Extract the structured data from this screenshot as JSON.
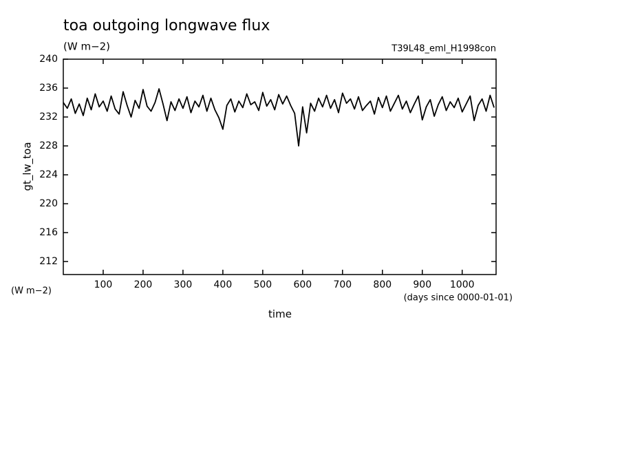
{
  "chart_data": {
    "type": "line",
    "title": "toa outgoing longwave flux",
    "subtitle": "(W m−2)",
    "run_label": "T39L48_eml_H1998con",
    "y_label": "gt_lw_toa",
    "y_unit": "(W m−2)",
    "x_label": "time",
    "x_unit": "(days since 0000-01-01)",
    "xlim": [
      0,
      1085
    ],
    "ylim": [
      210.2,
      240
    ],
    "xticks": [
      100,
      200,
      300,
      400,
      500,
      600,
      700,
      800,
      900,
      1000
    ],
    "yticks": [
      212,
      216,
      220,
      224,
      228,
      232,
      236,
      240
    ],
    "x": [
      0,
      10,
      20,
      30,
      40,
      50,
      60,
      70,
      80,
      90,
      100,
      110,
      120,
      130,
      140,
      150,
      160,
      170,
      180,
      190,
      200,
      210,
      220,
      230,
      240,
      250,
      260,
      270,
      280,
      290,
      300,
      310,
      320,
      330,
      340,
      350,
      360,
      370,
      380,
      390,
      400,
      410,
      420,
      430,
      440,
      450,
      460,
      470,
      480,
      490,
      500,
      510,
      520,
      530,
      540,
      550,
      560,
      570,
      580,
      590,
      600,
      610,
      620,
      630,
      640,
      650,
      660,
      670,
      680,
      690,
      700,
      710,
      720,
      730,
      740,
      750,
      760,
      770,
      780,
      790,
      800,
      810,
      820,
      830,
      840,
      850,
      860,
      870,
      880,
      890,
      900,
      910,
      920,
      930,
      940,
      950,
      960,
      970,
      980,
      990,
      1000,
      1010,
      1020,
      1030,
      1040,
      1050,
      1060,
      1070,
      1080
    ],
    "series": [
      {
        "color": "#000000",
        "values": [
          234,
          233.2,
          234.5,
          232.5,
          233.8,
          232.2,
          234.6,
          233,
          235.2,
          233.4,
          234.2,
          232.8,
          234.9,
          233.1,
          232.4,
          235.5,
          233.6,
          232,
          234.3,
          233.2,
          235.8,
          233.5,
          232.8,
          234,
          235.9,
          233.8,
          231.5,
          234.1,
          232.9,
          234.5,
          233.2,
          234.8,
          232.6,
          234.2,
          233.4,
          235,
          232.8,
          234.6,
          233,
          231.9,
          230.3,
          233.6,
          234.5,
          232.7,
          234.2,
          233.3,
          235.2,
          233.7,
          234.1,
          232.9,
          235.4,
          233.5,
          234.4,
          233,
          235.1,
          233.8,
          234.9,
          233.6,
          232.5,
          228,
          233.4,
          229.8,
          233.9,
          232.8,
          234.6,
          233.4,
          235,
          233.2,
          234.4,
          232.6,
          235.3,
          233.9,
          234.5,
          233.1,
          234.8,
          232.9,
          233.6,
          234.2,
          232.4,
          234.7,
          233.3,
          234.9,
          232.8,
          233.9,
          235,
          233.1,
          234.2,
          232.6,
          233.8,
          234.9,
          231.6,
          233.4,
          234.4,
          232.1,
          233.7,
          234.8,
          232.9,
          234.1,
          233.3,
          234.6,
          232.7,
          233.8,
          234.9,
          231.5,
          233.6,
          234.5,
          232.8,
          235,
          233.3
        ]
      }
    ]
  }
}
